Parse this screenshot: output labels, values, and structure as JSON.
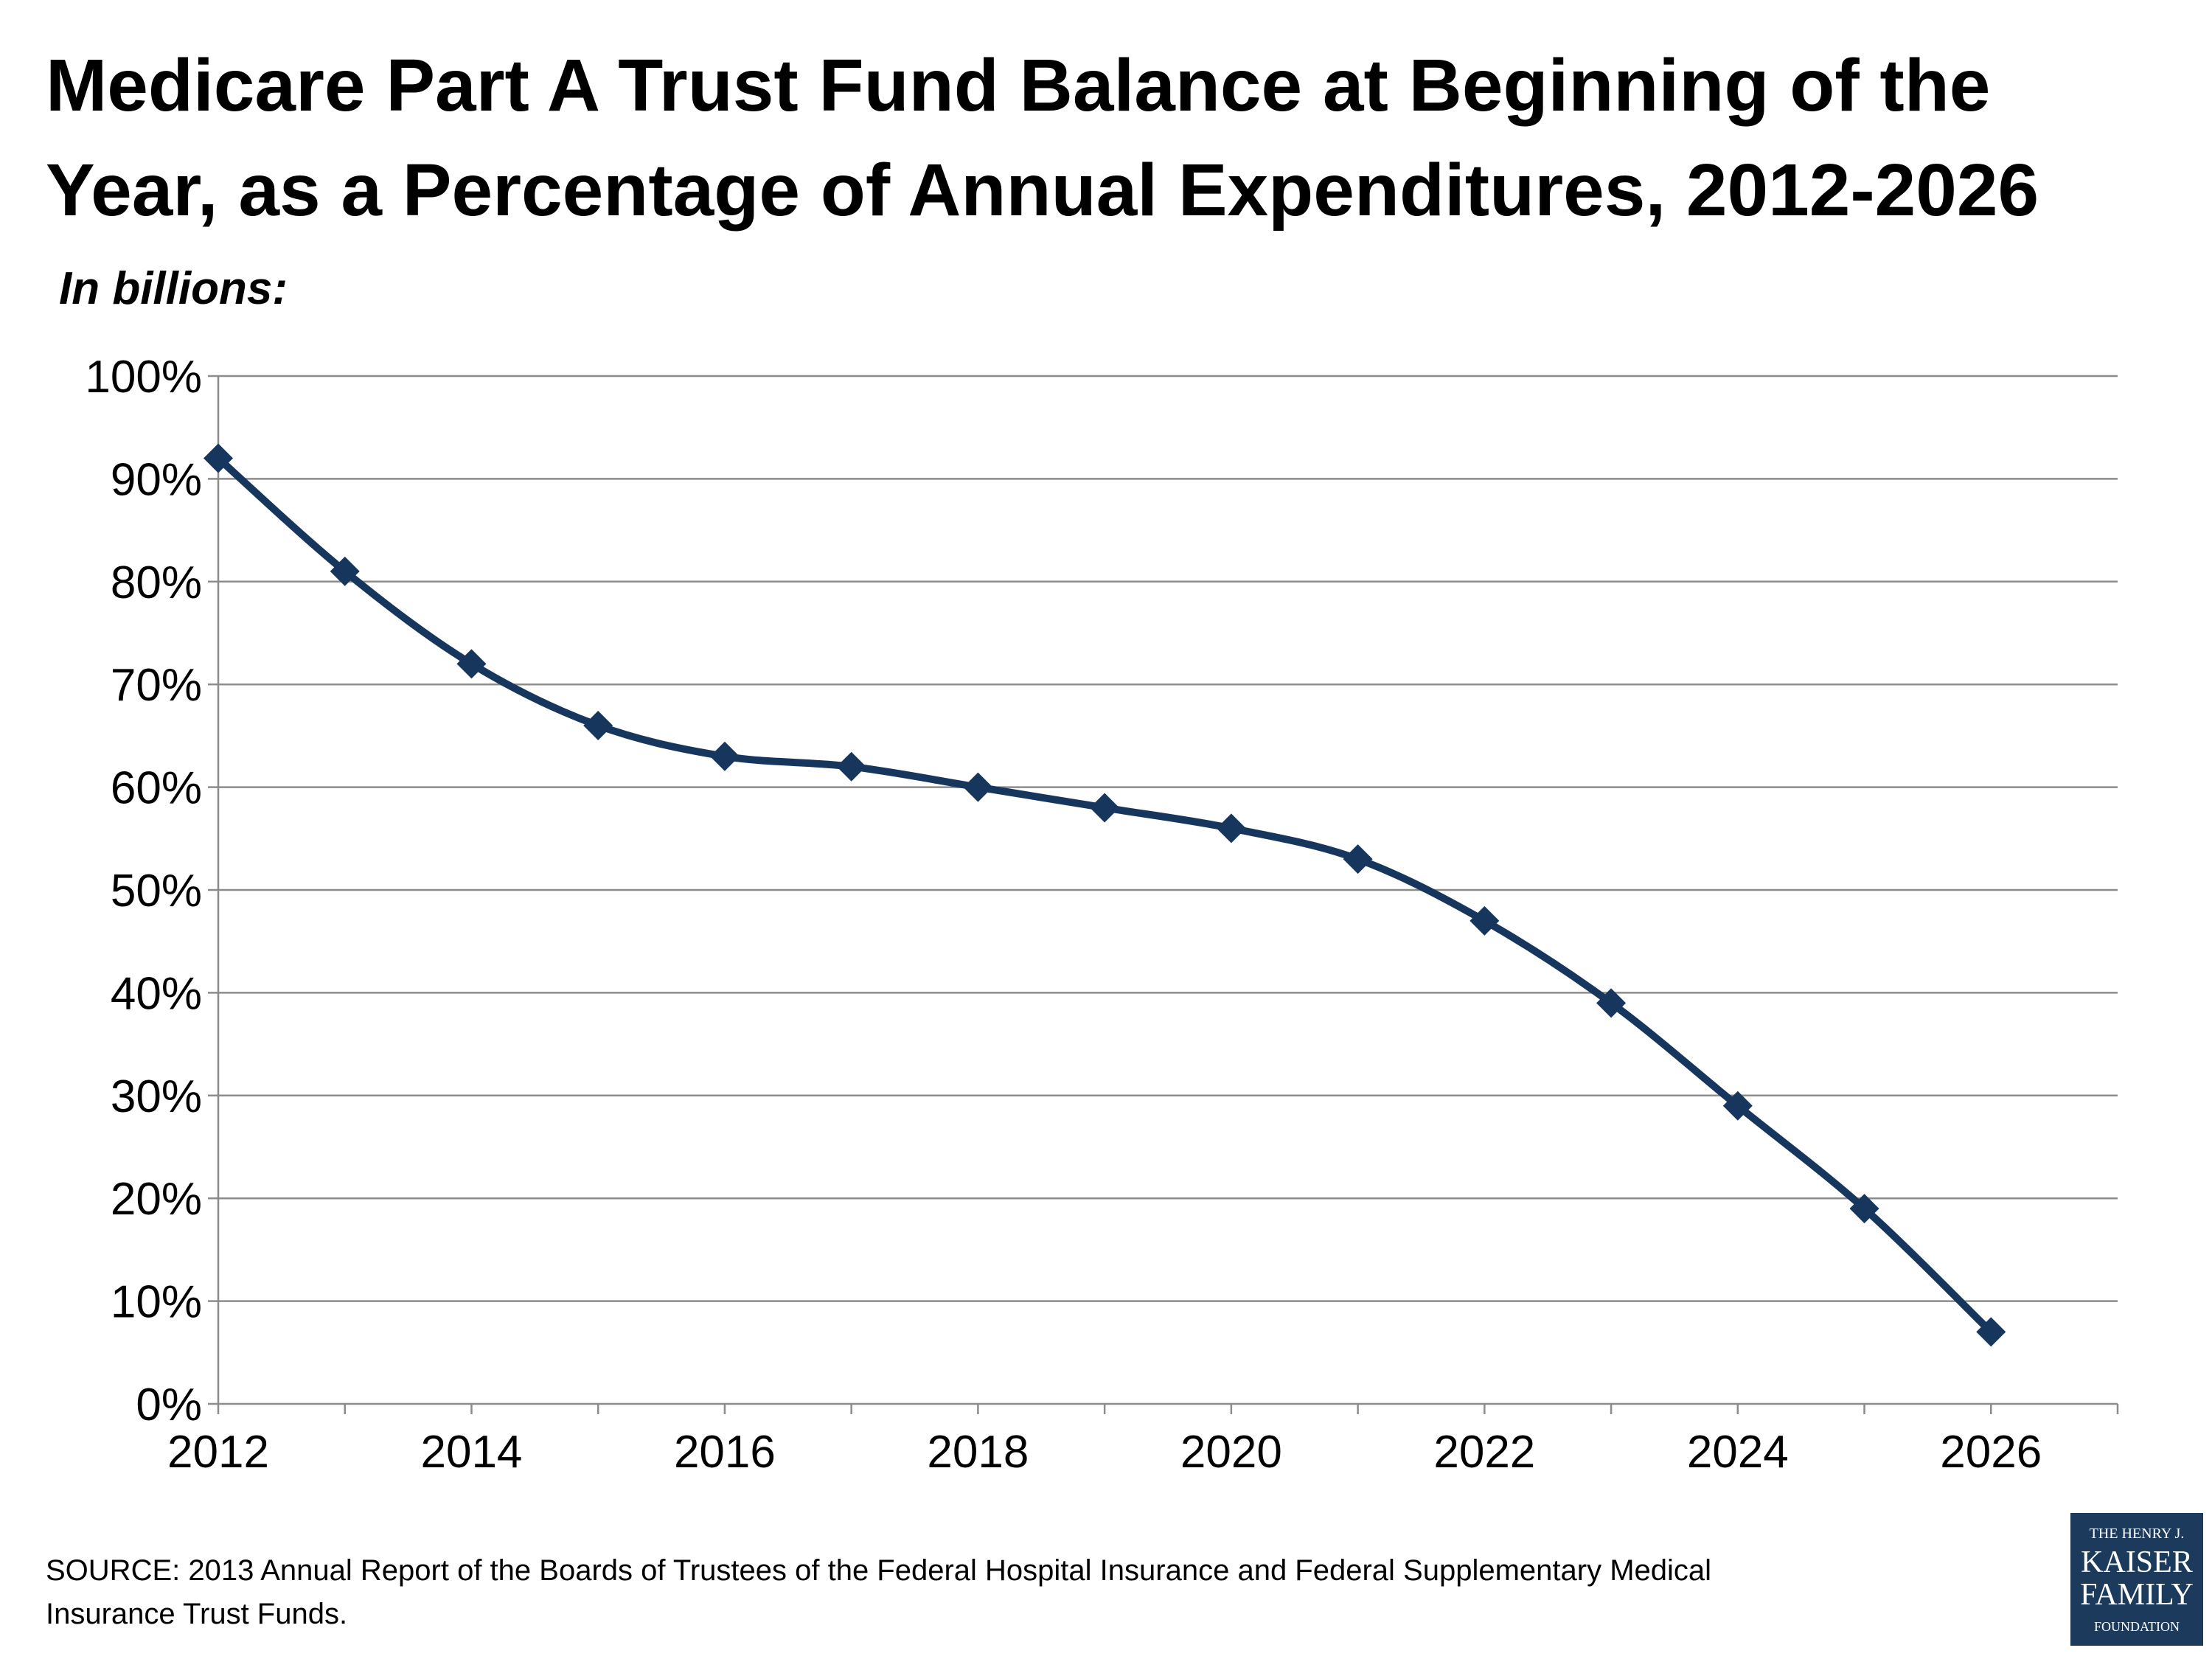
{
  "title_line1": "Medicare Part A Trust Fund Balance at Beginning of the",
  "title_line2": "Year, as a Percentage of Annual Expenditures, 2012-2026",
  "subtitle": "In billions:",
  "source_line1": "SOURCE: 2013 Annual Report of the Boards of Trustees of the Federal Hospital Insurance and Federal Supplementary Medical",
  "source_line2": "Insurance Trust Funds.",
  "logo": {
    "line1": "THE HENRY J.",
    "line2": "KAISER",
    "line3": "FAMILY",
    "line4": "FOUNDATION",
    "color": "#1b3a5c"
  },
  "chart_data": {
    "type": "line",
    "x": [
      2012,
      2013,
      2014,
      2015,
      2016,
      2017,
      2018,
      2019,
      2020,
      2021,
      2022,
      2023,
      2024,
      2025,
      2026
    ],
    "series": [
      {
        "values": [
          92,
          81,
          72,
          66,
          63,
          62,
          60,
          58,
          56,
          53,
          47,
          39,
          29,
          19,
          7
        ]
      }
    ],
    "xlim": [
      2012,
      2027
    ],
    "ylim": [
      0,
      100
    ],
    "x_ticks": [
      "2012",
      "2014",
      "2016",
      "2018",
      "2020",
      "2022",
      "2024",
      "2026"
    ],
    "y_ticks": [
      "0%",
      "10%",
      "20%",
      "30%",
      "40%",
      "50%",
      "60%",
      "70%",
      "80%",
      "90%",
      "100%"
    ],
    "grid": true,
    "line_color": "#17365d",
    "marker": "diamond"
  }
}
